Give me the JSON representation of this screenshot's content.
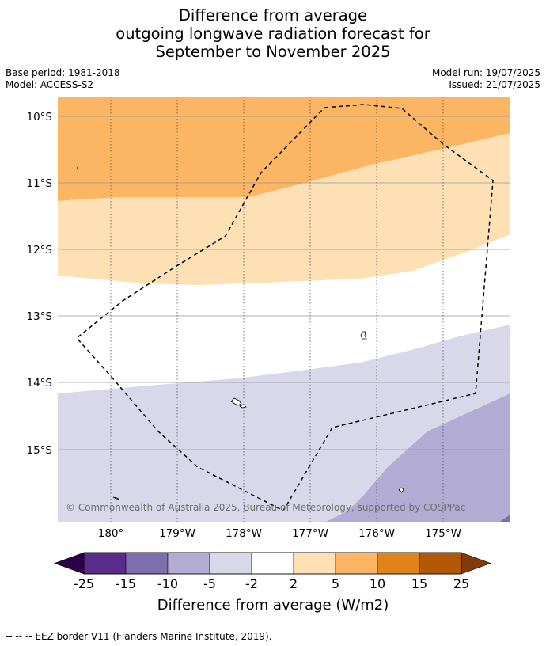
{
  "title": {
    "line1": "Difference from average",
    "line2": "outgoing longwave radiation forecast for",
    "line3": "September to November 2025"
  },
  "meta_left": {
    "base_period": "Base period: 1981-2018",
    "model": "Model: ACCESS-S2"
  },
  "meta_right": {
    "model_run": "Model run: 19/07/2025",
    "issued": "Issued: 21/07/2025"
  },
  "map": {
    "lat_labels": [
      "10°S",
      "11°S",
      "12°S",
      "13°S",
      "14°S",
      "15°S"
    ],
    "lon_labels": [
      "180°",
      "179°W",
      "178°W",
      "177°W",
      "176°W",
      "175°W"
    ],
    "copyright": "© Commonwealth of Australia 2025, Bureau of Meteorology, supported by COSPPac",
    "colors": {
      "c_15_10": "#7d6fae",
      "c_10_5": "#b2abd3",
      "c_5_2": "#d8d8ea",
      "c_2_5": "#fde0b3",
      "c_5_10": "#fcb562"
    }
  },
  "colorbar": {
    "ticks": [
      "-25",
      "-15",
      "-10",
      "-5",
      "-2",
      "2",
      "5",
      "10",
      "15",
      "25"
    ],
    "colors": [
      "#592c8c",
      "#7d6fae",
      "#b2abd3",
      "#d8d8ea",
      "#ffffff",
      "#fde0b3",
      "#fcb562",
      "#e2821b",
      "#b35806"
    ],
    "low_extend_color": "#2d004b",
    "high_extend_color": "#7f3b08",
    "label": "Difference from average (W/m2)"
  },
  "footer": "--  --  -- EEZ border V11 (Flanders Marine Institute, 2019)."
}
